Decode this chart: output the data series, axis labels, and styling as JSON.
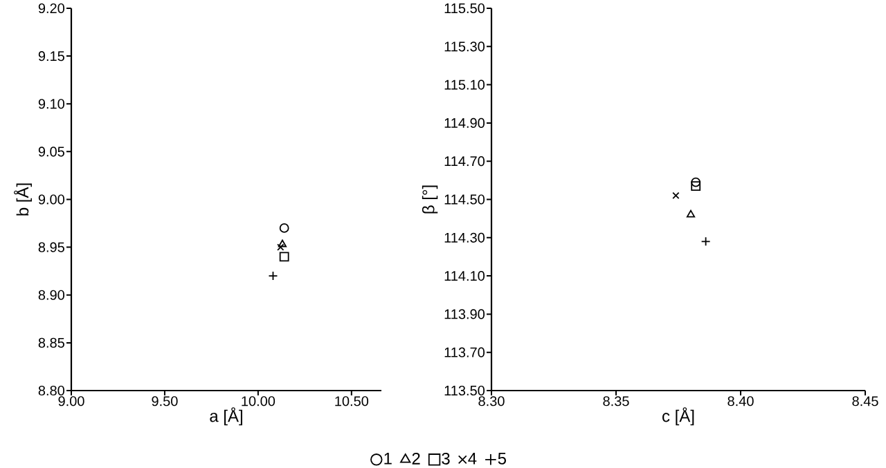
{
  "chart_data": [
    {
      "type": "scatter",
      "xlabel": "a [Å]",
      "ylabel": "b [Å]",
      "xlim": [
        9.0,
        10.66
      ],
      "ylim": [
        8.8,
        9.2
      ],
      "xticks": [
        {
          "value": 9.0,
          "label": "9.00"
        },
        {
          "value": 9.5,
          "label": "9.50"
        },
        {
          "value": 10.0,
          "label": "10.00"
        },
        {
          "value": 10.5,
          "label": "10.50"
        }
      ],
      "yticks": [
        {
          "value": 8.8,
          "label": "8.80"
        },
        {
          "value": 8.85,
          "label": "8.85"
        },
        {
          "value": 8.9,
          "label": "8.90"
        },
        {
          "value": 8.95,
          "label": "8.95"
        },
        {
          "value": 9.0,
          "label": "9.00"
        },
        {
          "value": 9.05,
          "label": "9.05"
        },
        {
          "value": 9.1,
          "label": "9.10"
        },
        {
          "value": 9.15,
          "label": "9.15"
        },
        {
          "value": 9.2,
          "label": "9.20"
        }
      ],
      "legend": "bottom",
      "grid": false,
      "series": [
        {
          "name": "1",
          "marker": "circle",
          "color": "#000000",
          "x": [
            10.14
          ],
          "values": [
            8.97
          ]
        },
        {
          "name": "2",
          "marker": "triangle",
          "color": "#000000",
          "x": [
            10.13
          ],
          "values": [
            8.953
          ]
        },
        {
          "name": "3",
          "marker": "square",
          "color": "#000000",
          "x": [
            10.14
          ],
          "values": [
            8.94
          ]
        },
        {
          "name": "4",
          "marker": "cross",
          "color": "#000000",
          "x": [
            10.12
          ],
          "values": [
            8.95
          ]
        },
        {
          "name": "5",
          "marker": "plus",
          "color": "#000000",
          "x": [
            10.08
          ],
          "values": [
            8.92
          ]
        }
      ]
    },
    {
      "type": "scatter",
      "xlabel": "c [Å]",
      "ylabel": "β [°]",
      "xlim": [
        8.3,
        8.45
      ],
      "ylim": [
        113.5,
        115.5
      ],
      "xticks": [
        {
          "value": 8.3,
          "label": "8.30"
        },
        {
          "value": 8.35,
          "label": "8.35"
        },
        {
          "value": 8.4,
          "label": "8.40"
        },
        {
          "value": 8.45,
          "label": "8.45"
        }
      ],
      "yticks": [
        {
          "value": 113.5,
          "label": "113.50"
        },
        {
          "value": 113.7,
          "label": "113.70"
        },
        {
          "value": 113.9,
          "label": "113.90"
        },
        {
          "value": 114.1,
          "label": "114.10"
        },
        {
          "value": 114.3,
          "label": "114.30"
        },
        {
          "value": 114.5,
          "label": "114.50"
        },
        {
          "value": 114.7,
          "label": "114.70"
        },
        {
          "value": 114.9,
          "label": "114.90"
        },
        {
          "value": 115.1,
          "label": "115.10"
        },
        {
          "value": 115.3,
          "label": "115.30"
        },
        {
          "value": 115.5,
          "label": "115.50"
        }
      ],
      "grid": false,
      "series": [
        {
          "marker": "circle",
          "color": "#000000",
          "x": [
            8.382
          ],
          "values": [
            114.59
          ]
        },
        {
          "marker": "triangle",
          "color": "#000000",
          "x": [
            8.38
          ],
          "values": [
            114.42
          ]
        },
        {
          "marker": "square",
          "color": "#000000",
          "x": [
            8.382
          ],
          "values": [
            114.57
          ]
        },
        {
          "marker": "cross",
          "color": "#000000",
          "x": [
            8.374
          ],
          "values": [
            114.52
          ]
        },
        {
          "marker": "plus",
          "color": "#000000",
          "x": [
            8.386
          ],
          "values": [
            114.28
          ]
        }
      ]
    }
  ]
}
